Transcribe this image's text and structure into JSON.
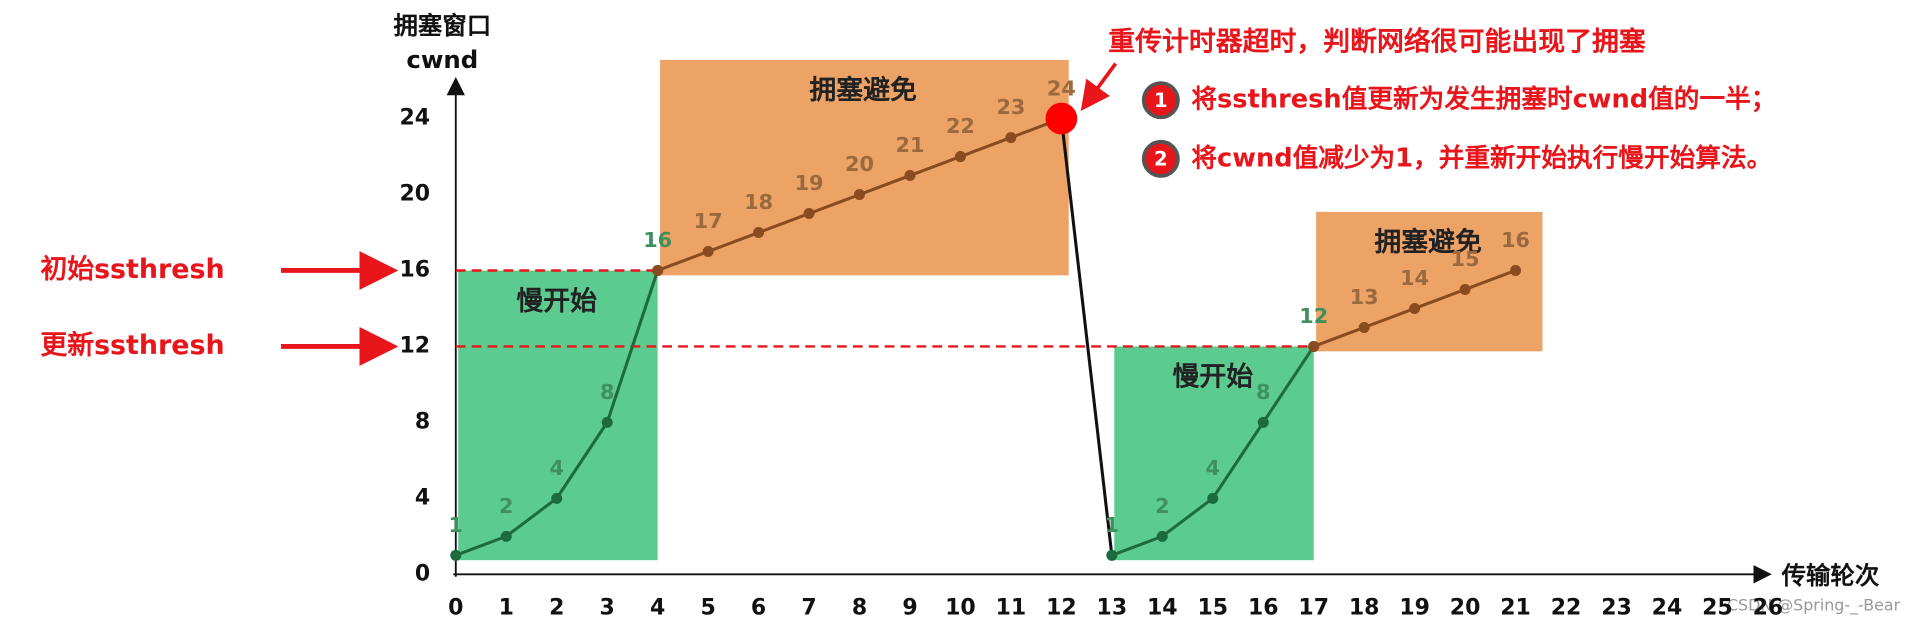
{
  "chart_data": {
    "type": "line",
    "ylabel": [
      "拥塞窗口",
      "cwnd"
    ],
    "xlabel": "传输轮次",
    "xlim": [
      0,
      26
    ],
    "ylim": [
      0,
      26
    ],
    "xticks": [
      0,
      1,
      2,
      3,
      4,
      5,
      6,
      7,
      8,
      9,
      10,
      11,
      12,
      13,
      14,
      15,
      16,
      17,
      18,
      19,
      20,
      21,
      22,
      23,
      24,
      25,
      26
    ],
    "yticks": [
      0,
      4,
      8,
      12,
      16,
      20,
      24
    ],
    "series": [
      {
        "color": "#1d6b3c",
        "label_color": "#3f8f5f",
        "x": [
          0,
          1,
          2,
          3,
          4
        ],
        "values": [
          1,
          2,
          4,
          8,
          16
        ]
      },
      {
        "color": "#8a4b1e",
        "label_color": "#9a6a3e",
        "x": [
          4,
          5,
          6,
          7,
          8,
          9,
          10,
          11,
          12
        ],
        "values": [
          16,
          17,
          18,
          19,
          20,
          21,
          22,
          23,
          24
        ],
        "highlight_last": "#ff0000"
      },
      {
        "color": "#111111",
        "x": [
          12,
          13
        ],
        "values": [
          24,
          1
        ],
        "markers": false,
        "labels": false
      },
      {
        "color": "#1d6b3c",
        "label_color": "#3f8f5f",
        "x": [
          13,
          14,
          15,
          16,
          17
        ],
        "values": [
          1,
          2,
          4,
          8,
          12
        ]
      },
      {
        "color": "#8a4b1e",
        "label_color": "#9a6a3e",
        "x": [
          17,
          18,
          19,
          20,
          21
        ],
        "values": [
          12,
          13,
          14,
          15,
          16
        ]
      }
    ],
    "regions": [
      {
        "label": "慢开始",
        "series": 0,
        "color": "#5ccb8f"
      },
      {
        "label": "拥塞避免",
        "series": 1,
        "color": "#eda266"
      },
      {
        "label": "慢开始",
        "series": 3,
        "color": "#5ccb8f"
      },
      {
        "label": "拥塞避免",
        "series": 4,
        "color": "#eda266"
      }
    ],
    "ssthresh": [
      {
        "label": "初始ssthresh",
        "value": 16,
        "until": 4
      },
      {
        "label": "更新ssthresh",
        "value": 12,
        "until": 17
      }
    ],
    "ssthresh_color": "#e8151b",
    "annotation": {
      "title": "重传计时器超时，判断网络很可能出现了拥塞",
      "items": [
        {
          "number": 1,
          "text": "将ssthresh值更新为发生拥塞时cwnd值的一半；"
        },
        {
          "number": 2,
          "text": "将cwnd值减少为1，并重新开始执行慢开始算法。"
        }
      ]
    },
    "watermark": "CSDN @Spring-_-Bear"
  }
}
